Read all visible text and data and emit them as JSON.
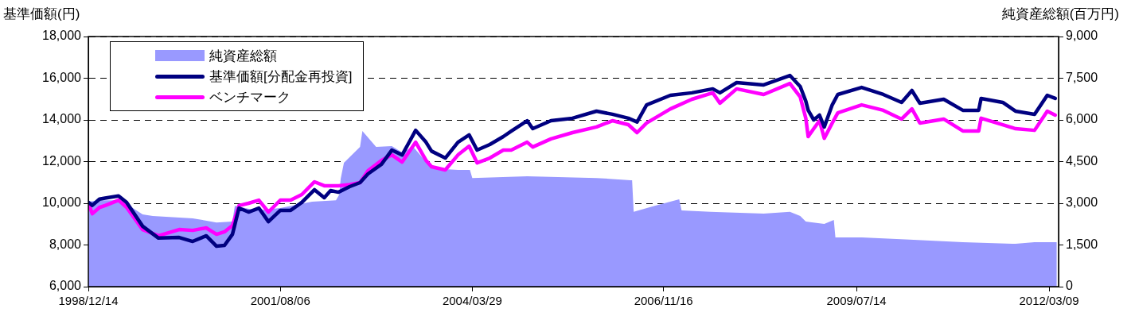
{
  "chart_data": {
    "type": "line",
    "ylabel": "基準価額(円)",
    "y2label": "純資産総額(百万円)",
    "legend": "top left",
    "grid": "y",
    "xlim": [
      "1998-12-14",
      "2012-04-26"
    ],
    "xticks": [
      {
        "value": "1998-12-14",
        "label": "1998/12/14"
      },
      {
        "value": "2001-08-06",
        "label": "2001/08/06"
      },
      {
        "value": "2004-03-29",
        "label": "2004/03/29"
      },
      {
        "value": "2006-11-16",
        "label": "2006/11/16"
      },
      {
        "value": "2009-07-14",
        "label": "2009/07/14"
      },
      {
        "value": "2012-03-09",
        "label": "2012/03/09"
      }
    ],
    "ylim": [
      6000,
      18000
    ],
    "yticks": [
      {
        "value": 6000,
        "label": "6,000"
      },
      {
        "value": 8000,
        "label": "8,000"
      },
      {
        "value": 10000,
        "label": "10,000"
      },
      {
        "value": 12000,
        "label": "12,000"
      },
      {
        "value": 14000,
        "label": "14,000"
      },
      {
        "value": 16000,
        "label": "16,000"
      },
      {
        "value": 18000,
        "label": "18,000"
      }
    ],
    "y2lim": [
      0,
      9000
    ],
    "y2ticks": [
      0,
      {
        "value": 1500,
        "label": "1,500"
      },
      {
        "value": 3000,
        "label": "3,000"
      },
      {
        "value": 4500,
        "label": "4,500"
      },
      {
        "value": 6000,
        "label": "6,000"
      },
      {
        "value": 7500,
        "label": "7,500"
      },
      {
        "value": 9000,
        "label": "9,000"
      }
    ],
    "series": [
      {
        "name": "純資産総額",
        "type": "area",
        "axis": "y2",
        "color": "#9999ff",
        "x": [
          "1998-12-14",
          "1999-02-08",
          "1999-05-26",
          "1999-07-26",
          "1999-09-13",
          "1999-11-03",
          "2000-05-22",
          "2000-09-19",
          "2000-12-08",
          "2000-12-20",
          "2001-04-07",
          "2001-08-06",
          "2002-01-13",
          "2002-05-13",
          "2002-05-29",
          "2002-06-06",
          "2002-06-22",
          "2002-09-11",
          "2002-09-23",
          "2002-12-01",
          "2003-02-18",
          "2003-04-11",
          "2003-06-06",
          "2003-09-06",
          "2004-01-17",
          "2004-03-17",
          "2004-03-29",
          "2004-12-30",
          "2005-12-14",
          "2006-06-03",
          "2006-06-11",
          "2006-06-19",
          "2006-10-02",
          "2007-02-03",
          "2007-02-15",
          "2007-07-10",
          "2008-04-03",
          "2008-08-13",
          "2008-10-04",
          "2008-11-01",
          "2009-02-02",
          "2009-03-22",
          "2009-03-30",
          "2009-08-09",
          "2010-04-07",
          "2010-12-31",
          "2011-09-22",
          "2011-12-27",
          "2012-04-17"
        ],
        "values": [
          3060,
          3110,
          3110,
          2830,
          2600,
          2540,
          2460,
          2310,
          2340,
          2910,
          2740,
          2830,
          3060,
          3110,
          3310,
          3890,
          4460,
          5030,
          5600,
          5030,
          5060,
          4830,
          5030,
          4260,
          4200,
          4200,
          3910,
          3970,
          3910,
          3830,
          3830,
          2690,
          2910,
          3140,
          2740,
          2690,
          2630,
          2690,
          2540,
          2340,
          2260,
          2400,
          1770,
          1770,
          1690,
          1600,
          1540,
          1600,
          1600
        ]
      },
      {
        "name": "基準価額[分配金再投資]",
        "type": "line",
        "color": "#000080",
        "x": [
          "1998-12-14",
          "1999-01-03",
          "1999-02-08",
          "1999-03-08",
          "1999-05-15",
          "1999-06-24",
          "1999-09-13",
          "1999-12-02",
          "2000-03-15",
          "2000-05-22",
          "2000-07-29",
          "2000-09-19",
          "2000-10-29",
          "2000-12-08",
          "2001-01-10",
          "2001-02-27",
          "2001-04-20",
          "2001-06-07",
          "2001-08-06",
          "2001-09-27",
          "2001-11-22",
          "2002-01-25",
          "2002-03-15",
          "2002-04-16",
          "2002-05-26",
          "2002-07-21",
          "2002-09-11",
          "2002-10-21",
          "2002-12-28",
          "2003-02-18",
          "2003-04-11",
          "2003-06-18",
          "2003-08-09",
          "2003-09-06",
          "2003-11-14",
          "2004-01-17",
          "2004-03-13",
          "2004-04-22",
          "2004-06-25",
          "2004-09-01",
          "2004-10-11",
          "2004-12-30",
          "2005-01-27",
          "2005-04-29",
          "2005-08-15",
          "2005-12-14",
          "2006-03-04",
          "2006-05-23",
          "2006-07-06",
          "2006-08-23",
          "2006-12-21",
          "2007-04-08",
          "2007-07-22",
          "2007-08-27",
          "2007-11-19",
          "2008-04-03",
          "2008-08-13",
          "2008-10-04",
          "2008-11-01",
          "2008-11-13",
          "2008-12-11",
          "2009-01-09",
          "2009-02-02",
          "2009-03-14",
          "2009-04-11",
          "2009-08-09",
          "2009-11-26",
          "2010-02-26",
          "2010-04-19",
          "2010-05-29",
          "2010-09-26",
          "2010-12-31",
          "2011-03-21",
          "2011-04-02",
          "2011-07-20",
          "2011-09-22",
          "2011-12-27",
          "2012-02-29",
          "2012-04-09"
        ],
        "values": [
          10050,
          9900,
          10200,
          10250,
          10350,
          10050,
          8900,
          8330,
          8360,
          8170,
          8440,
          7940,
          7980,
          8510,
          9770,
          9580,
          9770,
          9120,
          9660,
          9660,
          10040,
          10650,
          10270,
          10610,
          10530,
          10800,
          10990,
          11410,
          11870,
          12550,
          12320,
          13500,
          12930,
          12500,
          12170,
          12930,
          13280,
          12550,
          12820,
          13200,
          13460,
          13960,
          13580,
          13960,
          14080,
          14420,
          14270,
          14080,
          13900,
          14720,
          15180,
          15300,
          15490,
          15300,
          15790,
          15680,
          16130,
          15600,
          14900,
          14460,
          14000,
          14230,
          13660,
          14720,
          15220,
          15560,
          15220,
          14840,
          15410,
          14800,
          14990,
          14460,
          14460,
          15030,
          14840,
          14420,
          14270,
          15180,
          15030
        ]
      },
      {
        "name": "ベンチマーク",
        "type": "line",
        "color": "#ff00ff",
        "x": [
          "1998-12-14",
          "1999-01-03",
          "1999-02-08",
          "1999-03-08",
          "1999-05-15",
          "1999-06-24",
          "1999-09-13",
          "1999-12-02",
          "2000-03-15",
          "2000-05-22",
          "2000-07-29",
          "2000-09-19",
          "2000-10-29",
          "2000-12-08",
          "2001-01-10",
          "2001-02-27",
          "2001-04-20",
          "2001-06-07",
          "2001-08-06",
          "2001-09-27",
          "2001-11-22",
          "2002-01-25",
          "2002-03-15",
          "2002-04-16",
          "2002-05-26",
          "2002-07-21",
          "2002-09-11",
          "2002-10-21",
          "2002-12-28",
          "2003-02-18",
          "2003-04-11",
          "2003-06-18",
          "2003-08-09",
          "2003-09-06",
          "2003-11-14",
          "2004-01-17",
          "2004-03-13",
          "2004-04-22",
          "2004-06-25",
          "2004-09-01",
          "2004-10-11",
          "2004-12-30",
          "2005-01-27",
          "2005-04-29",
          "2005-08-15",
          "2005-12-14",
          "2006-03-04",
          "2006-05-23",
          "2006-07-06",
          "2006-08-23",
          "2006-12-21",
          "2007-04-08",
          "2007-07-22",
          "2007-08-27",
          "2007-11-19",
          "2008-04-03",
          "2008-08-13",
          "2008-10-04",
          "2008-11-01",
          "2008-11-13",
          "2008-12-11",
          "2009-01-09",
          "2009-02-02",
          "2009-03-14",
          "2009-04-11",
          "2009-08-09",
          "2009-11-26",
          "2010-02-26",
          "2010-04-19",
          "2010-05-29",
          "2010-09-26",
          "2010-12-31",
          "2011-03-21",
          "2011-04-02",
          "2011-07-20",
          "2011-09-22",
          "2011-12-27",
          "2012-02-29",
          "2012-04-09"
        ],
        "values": [
          10000,
          9500,
          9800,
          9890,
          10150,
          9810,
          8740,
          8440,
          8740,
          8700,
          8820,
          8510,
          8630,
          8930,
          9890,
          10000,
          10150,
          9580,
          10150,
          10150,
          10420,
          11030,
          10840,
          10840,
          10840,
          10900,
          10990,
          11560,
          12060,
          12320,
          11980,
          12930,
          12060,
          11750,
          11600,
          12320,
          12740,
          11940,
          12170,
          12550,
          12550,
          12930,
          12700,
          13090,
          13390,
          13660,
          13960,
          13770,
          13390,
          13850,
          14530,
          14990,
          15300,
          14800,
          15490,
          15220,
          15750,
          15100,
          14080,
          13200,
          13580,
          13960,
          13120,
          13850,
          14340,
          14720,
          14460,
          14040,
          14530,
          13850,
          14040,
          13470,
          13470,
          14080,
          13770,
          13580,
          13500,
          14420,
          14230
        ]
      }
    ]
  }
}
